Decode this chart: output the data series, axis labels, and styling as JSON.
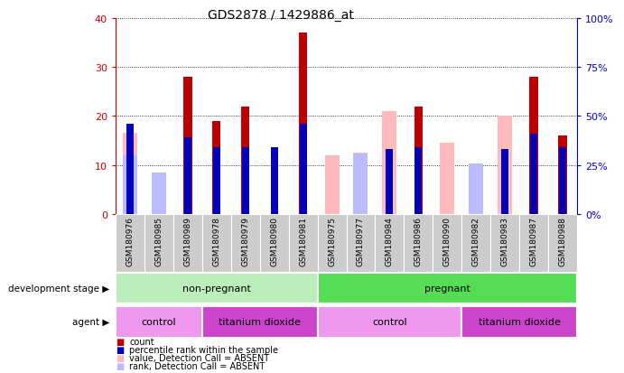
{
  "title": "GDS2878 / 1429886_at",
  "samples": [
    "GSM180976",
    "GSM180985",
    "GSM180989",
    "GSM180978",
    "GSM180979",
    "GSM180980",
    "GSM180981",
    "GSM180975",
    "GSM180977",
    "GSM180984",
    "GSM180986",
    "GSM180990",
    "GSM180982",
    "GSM180983",
    "GSM180987",
    "GSM180988"
  ],
  "count": [
    0,
    0,
    28,
    19,
    22,
    0,
    37,
    0,
    0,
    0,
    22,
    0,
    0,
    0,
    28,
    16
  ],
  "percentile": [
    46,
    0,
    39,
    34,
    34,
    34,
    46,
    0,
    0,
    33,
    34,
    0,
    0,
    33,
    41,
    34
  ],
  "absent_value": [
    16.5,
    7.5,
    0,
    0,
    0,
    0,
    0,
    12,
    12.5,
    21,
    0,
    14.5,
    9,
    20,
    0,
    0
  ],
  "absent_rank": [
    30,
    21,
    0,
    0,
    0,
    0,
    0,
    0,
    31,
    0,
    0,
    0,
    26,
    0,
    0,
    0
  ],
  "ylim_left": [
    0,
    40
  ],
  "ylim_right": [
    0,
    100
  ],
  "yticks_left": [
    0,
    10,
    20,
    30,
    40
  ],
  "yticks_right": [
    0,
    25,
    50,
    75,
    100
  ],
  "bar_width": 0.5,
  "percentile_bar_width": 0.25,
  "colors": {
    "count": "#bb0000",
    "percentile": "#0000bb",
    "absent_value": "#ffbbbb",
    "absent_rank": "#bbbbff",
    "non_pregnant_light": "#bbeebb",
    "pregnant_dark": "#55dd55",
    "control_light": "#ee99ee",
    "titanium_dark": "#cc44cc",
    "tick_left": "#cc0000",
    "tick_right": "#0000cc",
    "plot_bg": "#ffffff",
    "outer_bg": "#ffffff",
    "sample_bg": "#cccccc"
  },
  "legend_items": [
    {
      "label": "count",
      "color": "#bb0000"
    },
    {
      "label": "percentile rank within the sample",
      "color": "#0000bb"
    },
    {
      "label": "value, Detection Call = ABSENT",
      "color": "#ffbbbb"
    },
    {
      "label": "rank, Detection Call = ABSENT",
      "color": "#bbbbff"
    }
  ],
  "np_samples": 7,
  "control_np_samples": 3,
  "titanium_np_samples": 4,
  "control_p_samples": 5,
  "titanium_p_samples": 4,
  "total_samples": 16
}
